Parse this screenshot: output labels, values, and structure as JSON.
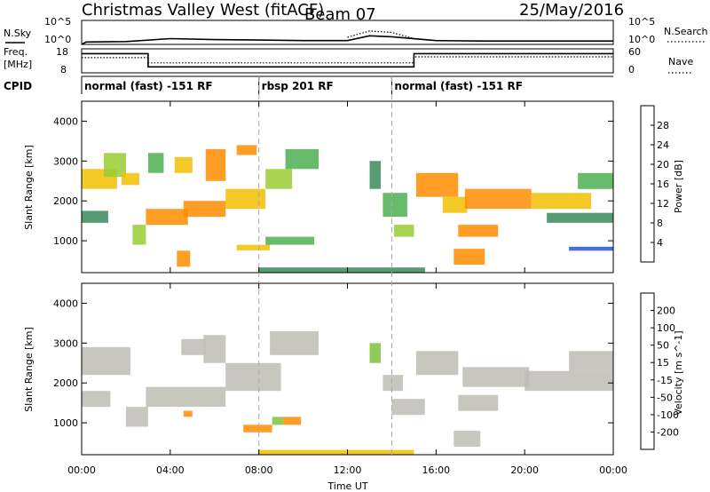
{
  "header": {
    "radar": "Christmas Valley West (fitACF)",
    "beam": "Beam 07",
    "date": "25/May/2016"
  },
  "noise_panel": {
    "left_label": "N.Sky",
    "right_label": "N.Search",
    "left_ticks": [
      "10^5",
      "10^0"
    ],
    "right_ticks": [
      "10^5",
      "10^0"
    ]
  },
  "freq_panel": {
    "left_label_1": "Freq.",
    "left_label_2": "[MHz]",
    "right_label": "Nave",
    "left_ticks": [
      "18",
      "8"
    ],
    "right_ticks": [
      "60",
      "0"
    ]
  },
  "cpid": {
    "label": "CPID",
    "segments": [
      {
        "label": "normal (fast) -151 RF",
        "start": 0,
        "end": 8
      },
      {
        "label": "rbsp 201 RF",
        "start": 8,
        "end": 14
      },
      {
        "label": "normal (fast) -151 RF",
        "start": 14,
        "end": 24
      }
    ]
  },
  "power_colorbar": {
    "title": "Power [dB]",
    "ticks": [
      "28",
      "24",
      "20",
      "16",
      "12",
      "8",
      "4"
    ],
    "colors": [
      "#0000ff",
      "#2855c8",
      "#3a8a5a",
      "#4caf50",
      "#9acd32",
      "#f0c000",
      "#ff8c00",
      "#ff4500",
      "#ff0000"
    ]
  },
  "velocity_colorbar": {
    "title": "Velocity [m s^-1]",
    "ticks": [
      "200",
      "100",
      "50",
      "15",
      "-15",
      "-50",
      "-100",
      "-200"
    ],
    "colors": [
      "#1c2c9c",
      "#2e6fb8",
      "#2e8b57",
      "#7cc23f",
      "#bdbdb5",
      "#f0c000",
      "#ff8c00",
      "#ff4500",
      "#e00000"
    ]
  },
  "chart_data": [
    {
      "type": "line",
      "title": "",
      "series": [
        {
          "name": "N.Sky",
          "x": [
            0,
            0.2,
            2,
            4,
            6,
            8,
            10,
            12,
            13,
            14,
            16,
            18,
            20,
            22,
            24
          ],
          "y": [
            0,
            0.5,
            0.6,
            1.2,
            1.0,
            0.9,
            0.8,
            0.8,
            1.8,
            1.6,
            0.8,
            0.7,
            0.7,
            0.7,
            0.7
          ]
        },
        {
          "name": "N.Search",
          "x": [
            12,
            13,
            14,
            15
          ],
          "y": [
            1.5,
            2.8,
            2.5,
            1.2
          ]
        }
      ],
      "ylim": [
        0,
        5
      ]
    },
    {
      "type": "line",
      "series": [
        {
          "name": "Freq.",
          "x": [
            0,
            3,
            3,
            15,
            15,
            24
          ],
          "y": [
            16,
            16,
            10.5,
            10.5,
            16,
            16
          ]
        },
        {
          "name": "Nave",
          "x": [
            0,
            3,
            3,
            15,
            15,
            24
          ],
          "y": [
            38,
            38,
            25,
            25,
            40,
            40
          ]
        }
      ],
      "ylim": [
        8,
        18
      ]
    },
    {
      "type": "heatmap",
      "quantity": "Power",
      "xlabel": "",
      "ylabel": "Slant Range [km]",
      "xlim": [
        0,
        24
      ],
      "ylim": [
        200,
        4500
      ],
      "y_ticks": [
        "1000",
        "2000",
        "3000",
        "4000"
      ],
      "regions": [
        {
          "t0": 0,
          "t1": 1.2,
          "r0": 1450,
          "r1": 1750,
          "v": 9
        },
        {
          "t0": 0,
          "t1": 1.6,
          "r0": 2300,
          "r1": 2800,
          "v": 20
        },
        {
          "t0": 1.0,
          "t1": 2.0,
          "r0": 2600,
          "r1": 3200,
          "v": 18
        },
        {
          "t0": 1.8,
          "t1": 2.6,
          "r0": 2400,
          "r1": 2700,
          "v": 22
        },
        {
          "t0": 2.3,
          "t1": 2.9,
          "r0": 900,
          "r1": 1400,
          "v": 18
        },
        {
          "t0": 2.9,
          "t1": 4.8,
          "r0": 1400,
          "r1": 1800,
          "v": 25
        },
        {
          "t0": 3.0,
          "t1": 3.7,
          "r0": 2700,
          "r1": 3200,
          "v": 12
        },
        {
          "t0": 4.2,
          "t1": 5.0,
          "r0": 2700,
          "r1": 3100,
          "v": 22
        },
        {
          "t0": 4.6,
          "t1": 6.5,
          "r0": 1600,
          "r1": 2000,
          "v": 24
        },
        {
          "t0": 5.6,
          "t1": 6.5,
          "r0": 2500,
          "r1": 3300,
          "v": 25
        },
        {
          "t0": 6.5,
          "t1": 8.3,
          "r0": 1800,
          "r1": 2300,
          "v": 22
        },
        {
          "t0": 7.0,
          "t1": 7.9,
          "r0": 3150,
          "r1": 3400,
          "v": 24
        },
        {
          "t0": 7.0,
          "t1": 8.5,
          "r0": 760,
          "r1": 900,
          "v": 20
        },
        {
          "t0": 4.3,
          "t1": 4.9,
          "r0": 350,
          "r1": 750,
          "v": 24
        },
        {
          "t0": 8.3,
          "t1": 9.5,
          "r0": 2300,
          "r1": 2800,
          "v": 18
        },
        {
          "t0": 9.2,
          "t1": 10.7,
          "r0": 2800,
          "r1": 3300,
          "v": 14
        },
        {
          "t0": 8.3,
          "t1": 10.5,
          "r0": 900,
          "r1": 1100,
          "v": 12
        },
        {
          "t0": 13.0,
          "t1": 13.5,
          "r0": 2300,
          "r1": 3000,
          "v": 9
        },
        {
          "t0": 13.6,
          "t1": 14.7,
          "r0": 1600,
          "r1": 2200,
          "v": 14
        },
        {
          "t0": 14.1,
          "t1": 15.0,
          "r0": 1100,
          "r1": 1400,
          "v": 16
        },
        {
          "t0": 15.1,
          "t1": 17.0,
          "r0": 2100,
          "r1": 2700,
          "v": 24
        },
        {
          "t0": 16.3,
          "t1": 17.4,
          "r0": 1700,
          "r1": 2100,
          "v": 22
        },
        {
          "t0": 17.0,
          "t1": 18.8,
          "r0": 1100,
          "r1": 1400,
          "v": 25
        },
        {
          "t0": 16.8,
          "t1": 18.2,
          "r0": 400,
          "r1": 800,
          "v": 26
        },
        {
          "t0": 17.3,
          "t1": 20.3,
          "r0": 1800,
          "r1": 2300,
          "v": 24
        },
        {
          "t0": 20.3,
          "t1": 23.0,
          "r0": 1800,
          "r1": 2200,
          "v": 20
        },
        {
          "t0": 22.4,
          "t1": 24.0,
          "r0": 2300,
          "r1": 2700,
          "v": 14
        },
        {
          "t0": 21.0,
          "t1": 24.0,
          "r0": 1450,
          "r1": 1700,
          "v": 8
        },
        {
          "t0": 22.0,
          "t1": 24.0,
          "r0": 750,
          "r1": 850,
          "v": 6
        },
        {
          "t0": 8.0,
          "t1": 15.5,
          "r0": 200,
          "r1": 330,
          "v": 8
        }
      ]
    },
    {
      "type": "heatmap",
      "quantity": "Velocity",
      "xlabel": "Time UT",
      "ylabel": "Slant Range [km]",
      "xlim": [
        0,
        24
      ],
      "ylim": [
        200,
        4500
      ],
      "x_ticks": [
        "00:00",
        "04:00",
        "08:00",
        "12:00",
        "16:00",
        "20:00",
        "00:00"
      ],
      "y_ticks": [
        "1000",
        "2000",
        "3000",
        "4000"
      ],
      "regions": [
        {
          "t0": 0,
          "t1": 2.2,
          "r0": 2200,
          "r1": 2900,
          "v": 0
        },
        {
          "t0": 0,
          "t1": 1.3,
          "r0": 1400,
          "r1": 1800,
          "v": 0
        },
        {
          "t0": 2.0,
          "t1": 3.0,
          "r0": 900,
          "r1": 1400,
          "v": 0
        },
        {
          "t0": 2.9,
          "t1": 6.5,
          "r0": 1400,
          "r1": 1900,
          "v": 0
        },
        {
          "t0": 4.5,
          "t1": 5.6,
          "r0": 2700,
          "r1": 3100,
          "v": 0
        },
        {
          "t0": 5.5,
          "t1": 6.5,
          "r0": 2500,
          "r1": 3200,
          "v": 0
        },
        {
          "t0": 6.5,
          "t1": 9.0,
          "r0": 1800,
          "r1": 2500,
          "v": 0
        },
        {
          "t0": 8.5,
          "t1": 10.7,
          "r0": 2700,
          "r1": 3300,
          "v": 0
        },
        {
          "t0": 4.6,
          "t1": 5.0,
          "r0": 1150,
          "r1": 1300,
          "v": -60
        },
        {
          "t0": 7.3,
          "t1": 8.6,
          "r0": 760,
          "r1": 950,
          "v": -60
        },
        {
          "t0": 8.6,
          "t1": 9.1,
          "r0": 950,
          "r1": 1150,
          "v": 40
        },
        {
          "t0": 9.1,
          "t1": 9.9,
          "r0": 950,
          "r1": 1150,
          "v": -60
        },
        {
          "t0": 13.0,
          "t1": 13.5,
          "r0": 2500,
          "r1": 3000,
          "v": 30
        },
        {
          "t0": 13.6,
          "t1": 14.5,
          "r0": 1800,
          "r1": 2200,
          "v": 0
        },
        {
          "t0": 14.0,
          "t1": 15.5,
          "r0": 1200,
          "r1": 1600,
          "v": 0
        },
        {
          "t0": 15.1,
          "t1": 17.0,
          "r0": 2200,
          "r1": 2800,
          "v": 0
        },
        {
          "t0": 17.0,
          "t1": 18.8,
          "r0": 1300,
          "r1": 1700,
          "v": 0
        },
        {
          "t0": 17.2,
          "t1": 20.2,
          "r0": 1900,
          "r1": 2400,
          "v": 0
        },
        {
          "t0": 20.0,
          "t1": 24.0,
          "r0": 1800,
          "r1": 2300,
          "v": 0
        },
        {
          "t0": 22.0,
          "t1": 24.0,
          "r0": 2300,
          "r1": 2800,
          "v": 0
        },
        {
          "t0": 16.8,
          "t1": 18.0,
          "r0": 400,
          "r1": 800,
          "v": 0
        },
        {
          "t0": 8.0,
          "t1": 15.0,
          "r0": 200,
          "r1": 320,
          "v": -20
        }
      ]
    }
  ]
}
